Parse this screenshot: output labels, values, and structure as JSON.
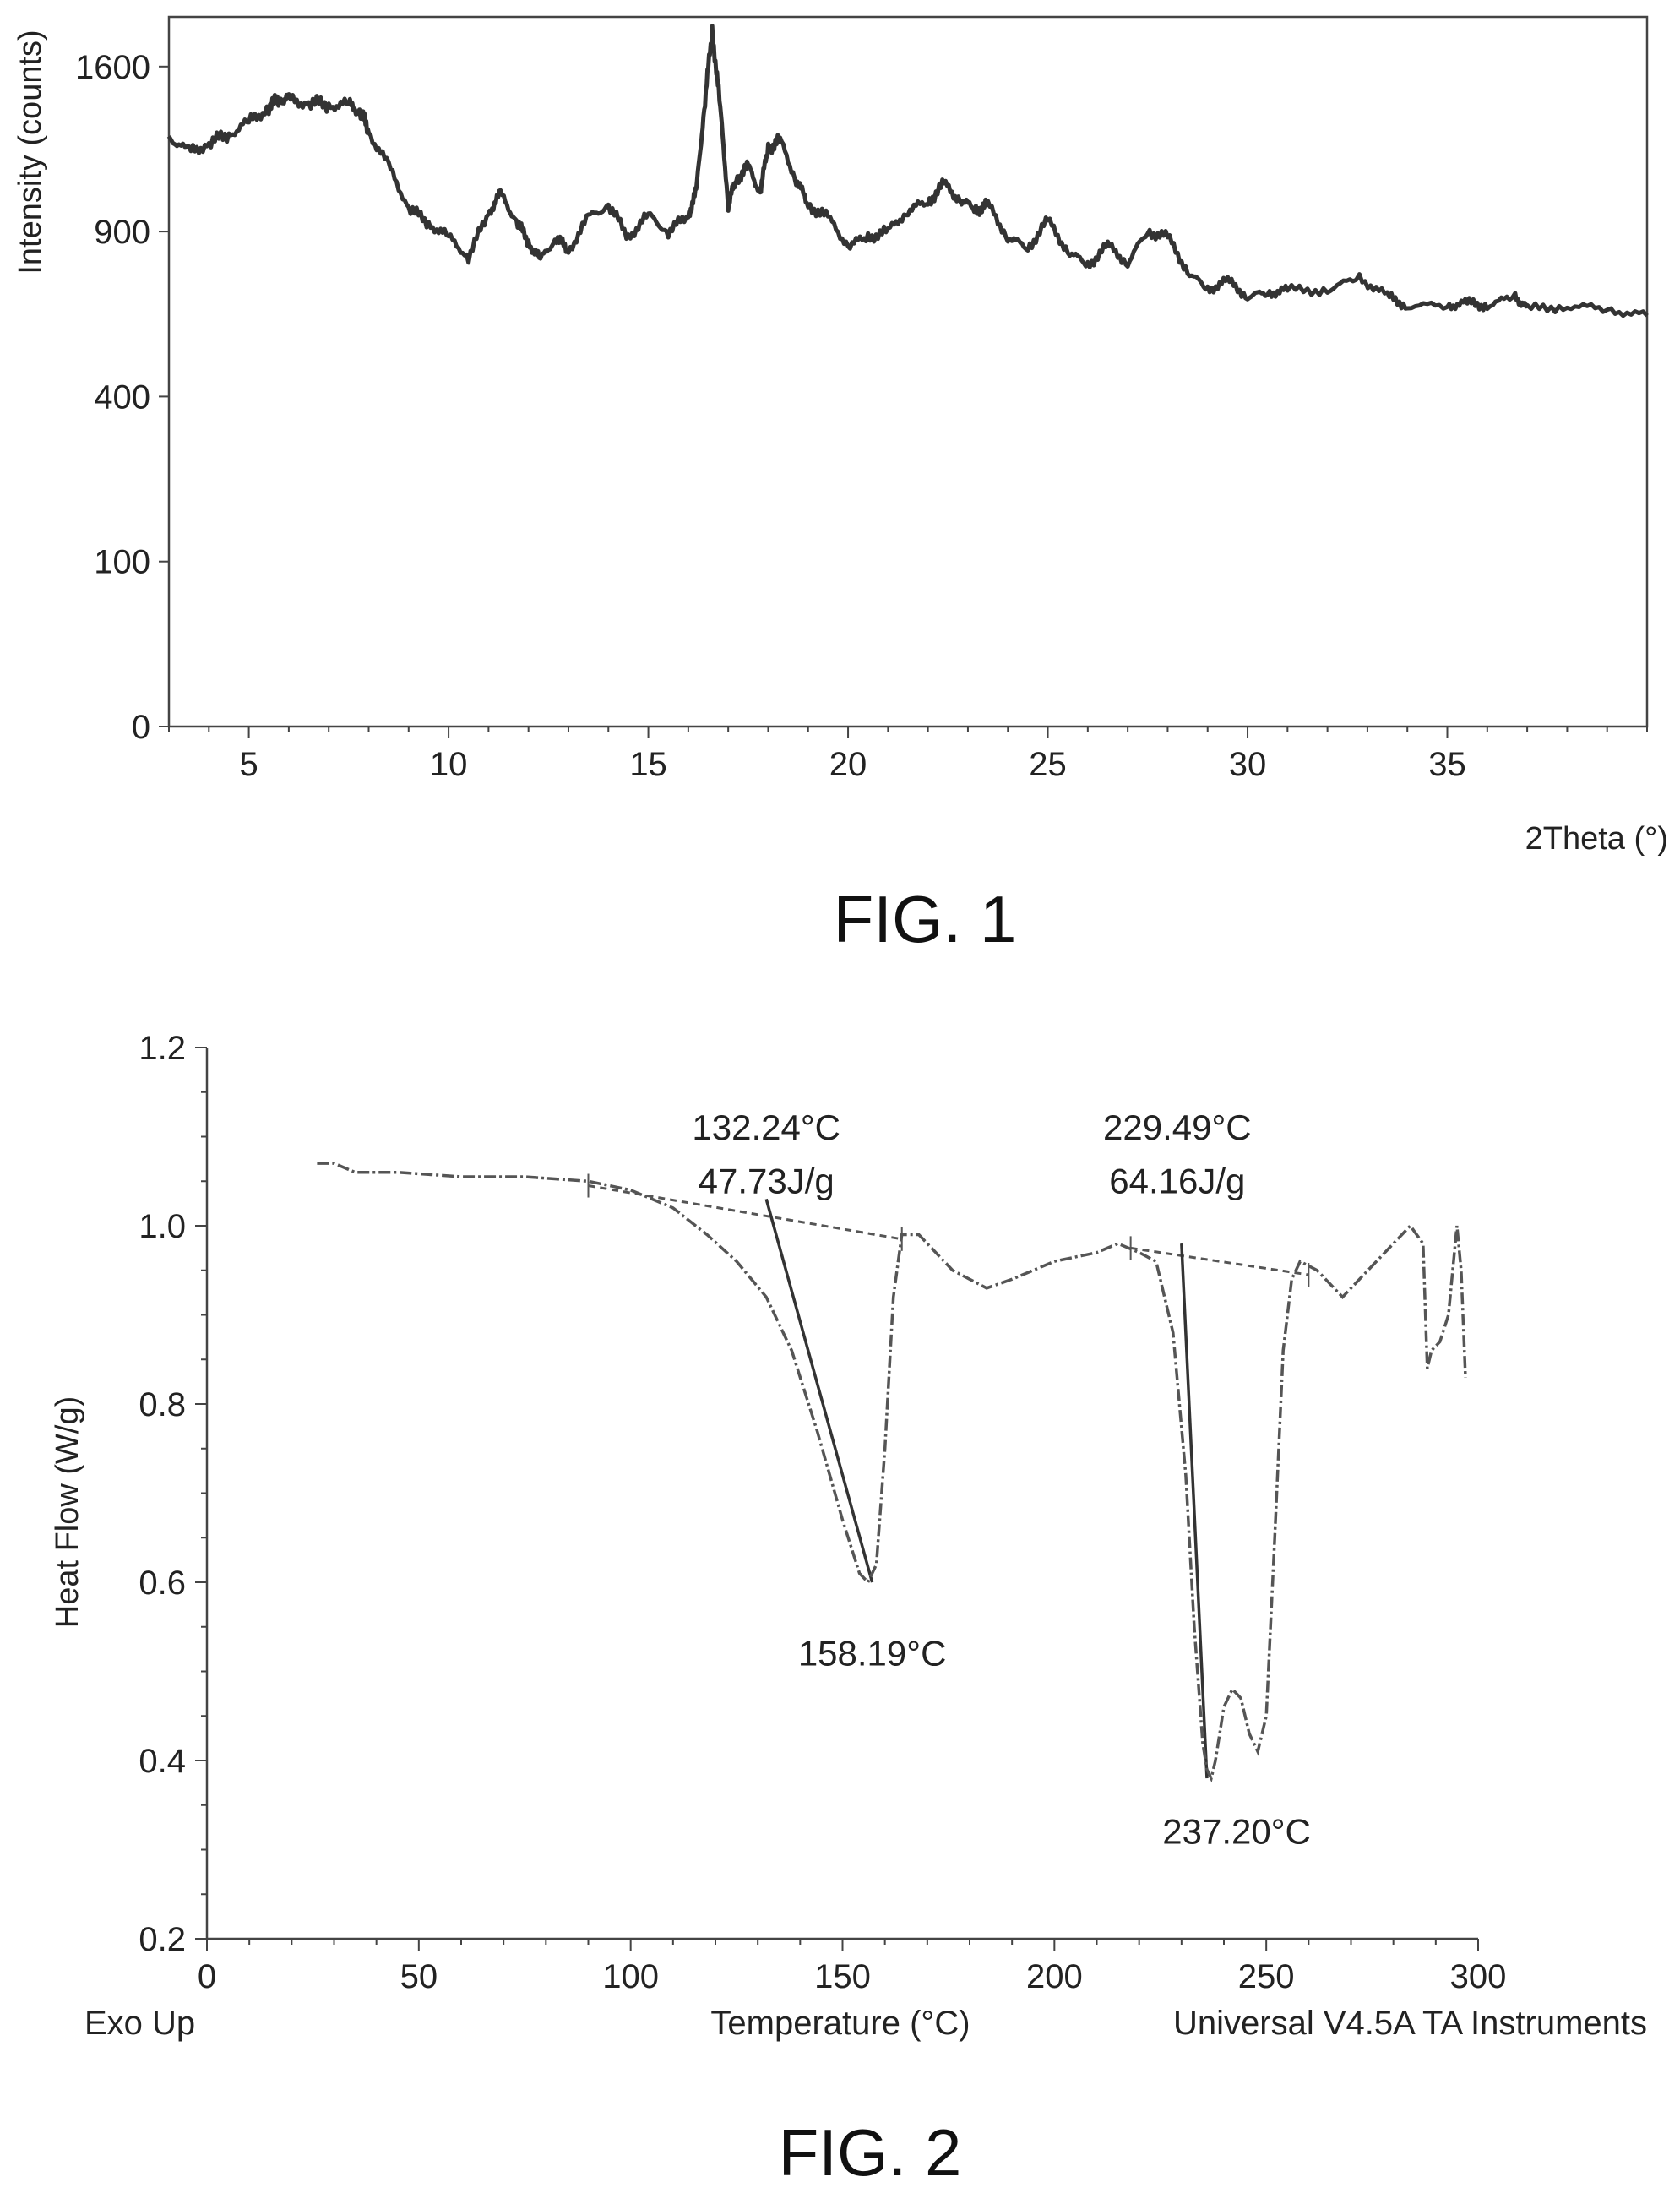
{
  "chart_data": [
    {
      "type": "line",
      "caption": "FIG. 1",
      "title": "",
      "xlabel": "2Theta (°)",
      "ylabel": "Intensity (counts)",
      "xlim": [
        3,
        40
      ],
      "y_scale": "sqrt",
      "ylim": [
        0,
        1850
      ],
      "x_ticks": [
        5,
        10,
        15,
        20,
        25,
        30,
        35
      ],
      "y_ticks": [
        0,
        100,
        400,
        900,
        1600
      ],
      "grid": false,
      "legend": "none",
      "line_color": "#333333",
      "series": [
        {
          "x": [
            3.0,
            3.5,
            4.0,
            4.5,
            5.0,
            5.5,
            5.8,
            6.0,
            6.5,
            7.0,
            7.5,
            7.8,
            8.0,
            8.5,
            9.0,
            9.5,
            10.0,
            10.5,
            11.0,
            11.3,
            11.7,
            12.0,
            12.3,
            12.7,
            13.0,
            13.5,
            14.0,
            14.5,
            15.0,
            15.5,
            16.0,
            16.2,
            16.4,
            16.6,
            16.8,
            17.0,
            17.2,
            17.5,
            17.8,
            18.0,
            18.3,
            18.7,
            19.0,
            19.5,
            20.0,
            20.5,
            21.0,
            21.5,
            22.0,
            22.4,
            22.8,
            23.2,
            23.5,
            24.0,
            24.5,
            25.0,
            25.5,
            26.0,
            26.5,
            27.0,
            27.5,
            28.0,
            28.5,
            29.0,
            29.5,
            30.0,
            30.5,
            31.0,
            32.0,
            32.8,
            33.5,
            34.0,
            35.0,
            35.5,
            36.0,
            36.7,
            37.0,
            38.0,
            39.0,
            40.0
          ],
          "y": [
            1280,
            1210,
            1250,
            1290,
            1340,
            1410,
            1450,
            1440,
            1430,
            1420,
            1420,
            1390,
            1300,
            1150,
            990,
            930,
            880,
            810,
            970,
            1040,
            940,
            860,
            800,
            880,
            830,
            950,
            1000,
            880,
            960,
            900,
            960,
            1050,
            1400,
            1780,
            1400,
            1000,
            1100,
            1150,
            1050,
            1230,
            1260,
            1100,
            1000,
            950,
            850,
            880,
            900,
            980,
            1010,
            1080,
            1020,
            980,
            1000,
            880,
            840,
            940,
            830,
            780,
            850,
            790,
            900,
            880,
            760,
            700,
            730,
            680,
            690,
            700,
            700,
            740,
            680,
            650,
            650,
            660,
            650,
            680,
            640,
            650,
            640,
            620
          ]
        }
      ]
    },
    {
      "type": "line",
      "caption": "FIG. 2",
      "title": "",
      "xlabel": "Temperature (°C)",
      "ylabel": "Heat Flow (W/g)",
      "footer_left": "Exo Up",
      "footer_right": "Universal V4.5A TA Instruments",
      "xlim": [
        0,
        300
      ],
      "ylim": [
        0.2,
        1.2
      ],
      "x_ticks": [
        0,
        50,
        100,
        150,
        200,
        250,
        300
      ],
      "y_ticks": [
        0.2,
        0.4,
        0.6,
        0.8,
        1.0,
        1.2
      ],
      "grid": false,
      "legend": "none",
      "line_color": "#555555",
      "series": [
        {
          "x": [
            26,
            30,
            35,
            45,
            60,
            75,
            90,
            100,
            110,
            118,
            125,
            132,
            138,
            144,
            150,
            154,
            156,
            158,
            160,
            162,
            164,
            168,
            172,
            176,
            180,
            184,
            190,
            200,
            210,
            215,
            220,
            224,
            228,
            231,
            233,
            235,
            236,
            237,
            238,
            240,
            242,
            244,
            246,
            248,
            250,
            252,
            254,
            256,
            258,
            262,
            266,
            268,
            272,
            278,
            284,
            287,
            288,
            289,
            291,
            293,
            295,
            296,
            297
          ],
          "y": [
            1.07,
            1.07,
            1.06,
            1.06,
            1.055,
            1.055,
            1.05,
            1.04,
            1.02,
            0.99,
            0.96,
            0.92,
            0.86,
            0.77,
            0.67,
            0.61,
            0.6,
            0.62,
            0.75,
            0.92,
            0.99,
            0.99,
            0.97,
            0.95,
            0.94,
            0.93,
            0.94,
            0.96,
            0.97,
            0.98,
            0.97,
            0.96,
            0.88,
            0.72,
            0.55,
            0.42,
            0.39,
            0.38,
            0.4,
            0.46,
            0.48,
            0.47,
            0.43,
            0.41,
            0.45,
            0.65,
            0.86,
            0.94,
            0.96,
            0.95,
            0.93,
            0.92,
            0.94,
            0.97,
            1.0,
            0.98,
            0.84,
            0.86,
            0.87,
            0.9,
            1.0,
            0.95,
            0.83
          ]
        }
      ],
      "baselines": [
        {
          "x": [
            90,
            164
          ],
          "y": [
            1.045,
            0.985
          ]
        },
        {
          "x": [
            218,
            260
          ],
          "y": [
            0.975,
            0.945
          ]
        }
      ],
      "annotations": [
        {
          "text": "132.24°C",
          "x": 132,
          "y": 1.11
        },
        {
          "text": "47.73J/g",
          "x": 132,
          "y": 1.05
        },
        {
          "text": "229.49°C",
          "x": 229,
          "y": 1.11
        },
        {
          "text": "64.16J/g",
          "x": 229,
          "y": 1.05
        },
        {
          "text": "158.19°C",
          "x": 157,
          "y": 0.52
        },
        {
          "text": "237.20°C",
          "x": 243,
          "y": 0.32
        }
      ],
      "tangents": [
        {
          "x": [
            132,
            157
          ],
          "y": [
            1.03,
            0.6
          ]
        },
        {
          "x": [
            230,
            236
          ],
          "y": [
            0.98,
            0.38
          ]
        }
      ]
    }
  ]
}
